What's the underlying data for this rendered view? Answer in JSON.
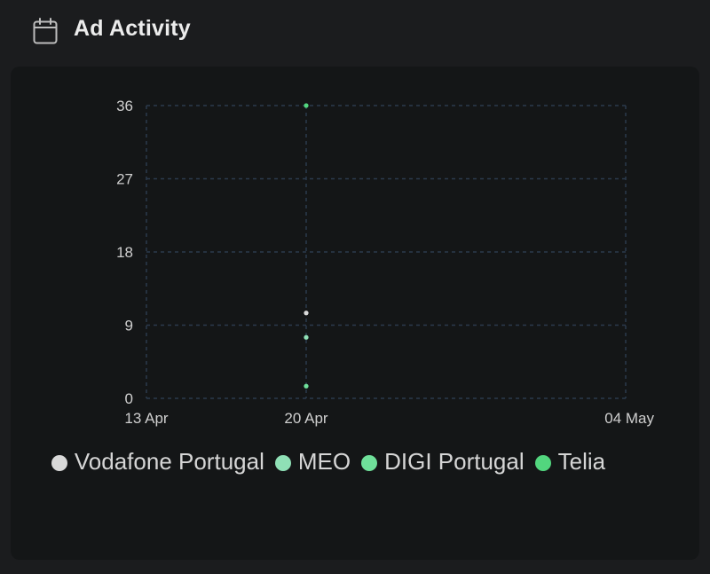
{
  "header": {
    "title": "Ad Activity",
    "icon": "calendar-icon"
  },
  "colors": {
    "background": "#1b1c1e",
    "card": "#141617",
    "grid": "#2b3a4d",
    "axis_text": "#cfcfcf"
  },
  "chart_data": {
    "type": "scatter",
    "x_ticks": [
      "13 Apr",
      "20 Apr",
      "04 May"
    ],
    "y_ticks": [
      0,
      9,
      18,
      27,
      36
    ],
    "ylim": [
      0,
      36
    ],
    "xlim": [
      "13 Apr",
      "04 May"
    ],
    "grid": true,
    "legend_position": "bottom",
    "series": [
      {
        "name": "Vodafone Portugal",
        "color": "#d9d9d9",
        "points": [
          {
            "x": "20 Apr",
            "y": 10.5
          }
        ]
      },
      {
        "name": "MEO",
        "color": "#8fe0b6",
        "points": [
          {
            "x": "20 Apr",
            "y": 7.5
          }
        ]
      },
      {
        "name": "DIGI Portugal",
        "color": "#6fe09a",
        "points": [
          {
            "x": "20 Apr",
            "y": 1.5
          }
        ]
      },
      {
        "name": "Telia",
        "color": "#52d67e",
        "points": [
          {
            "x": "20 Apr",
            "y": 36
          }
        ]
      }
    ]
  }
}
